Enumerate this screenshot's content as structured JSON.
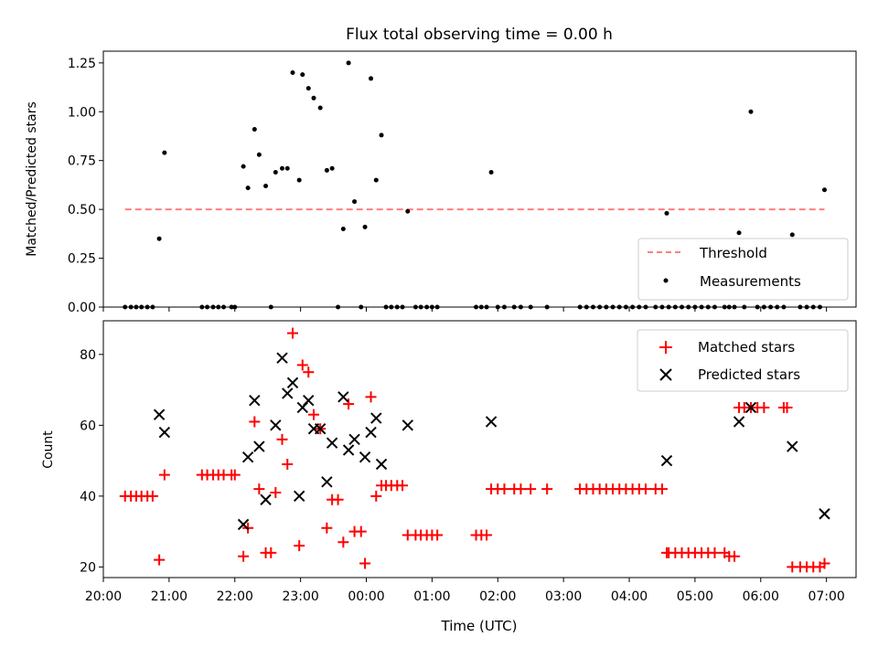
{
  "title": "Flux total observing time = 0.00 h",
  "chart_data": [
    {
      "type": "scatter",
      "panel": "top",
      "ylabel": "Matched/Predicted stars",
      "xlim": [
        20.0,
        31.45
      ],
      "ylim": [
        0.0,
        1.31
      ],
      "yticks": [
        0.0,
        0.25,
        0.5,
        0.75,
        1.0,
        1.25
      ],
      "ytick_labels": [
        "0.00",
        "0.25",
        "0.50",
        "0.75",
        "1.00",
        "1.25"
      ],
      "legend_position": "lower right",
      "threshold": {
        "name": "Threshold",
        "value": 0.5,
        "x_start": 20.33,
        "x_end": 30.97,
        "color": "#ff7f7f",
        "style": "dashed"
      },
      "measurements": {
        "name": "Measurements",
        "color": "#000000",
        "points": [
          [
            20.33,
            0
          ],
          [
            20.42,
            0
          ],
          [
            20.5,
            0
          ],
          [
            20.58,
            0
          ],
          [
            20.67,
            0
          ],
          [
            20.75,
            0
          ],
          [
            20.85,
            0.35
          ],
          [
            20.93,
            0.79
          ],
          [
            21.5,
            0
          ],
          [
            21.58,
            0
          ],
          [
            21.67,
            0
          ],
          [
            21.75,
            0
          ],
          [
            21.83,
            0
          ],
          [
            21.95,
            0
          ],
          [
            22.0,
            0
          ],
          [
            22.13,
            0.72
          ],
          [
            22.2,
            0.61
          ],
          [
            22.3,
            0.91
          ],
          [
            22.37,
            0.78
          ],
          [
            22.47,
            0.62
          ],
          [
            22.55,
            0
          ],
          [
            22.62,
            0.69
          ],
          [
            22.72,
            0.71
          ],
          [
            22.8,
            0.71
          ],
          [
            22.88,
            1.2
          ],
          [
            22.98,
            0.65
          ],
          [
            23.03,
            1.19
          ],
          [
            23.12,
            1.12
          ],
          [
            23.2,
            1.07
          ],
          [
            23.3,
            1.02
          ],
          [
            23.4,
            0.7
          ],
          [
            23.48,
            0.71
          ],
          [
            23.57,
            0
          ],
          [
            23.65,
            0.4
          ],
          [
            23.73,
            1.25
          ],
          [
            23.82,
            0.54
          ],
          [
            23.92,
            0
          ],
          [
            23.98,
            0.41
          ],
          [
            24.07,
            1.17
          ],
          [
            24.15,
            0.65
          ],
          [
            24.23,
            0.88
          ],
          [
            24.3,
            0
          ],
          [
            24.38,
            0
          ],
          [
            24.47,
            0
          ],
          [
            24.55,
            0
          ],
          [
            24.63,
            0.49
          ],
          [
            24.75,
            0
          ],
          [
            24.83,
            0
          ],
          [
            24.92,
            0
          ],
          [
            25.0,
            0
          ],
          [
            25.08,
            0
          ],
          [
            25.67,
            0
          ],
          [
            25.75,
            0
          ],
          [
            25.83,
            0
          ],
          [
            25.9,
            0.69
          ],
          [
            26.0,
            0
          ],
          [
            26.1,
            0
          ],
          [
            26.25,
            0
          ],
          [
            26.35,
            0
          ],
          [
            26.5,
            0
          ],
          [
            26.75,
            0
          ],
          [
            27.25,
            0
          ],
          [
            27.35,
            0
          ],
          [
            27.45,
            0
          ],
          [
            27.55,
            0
          ],
          [
            27.65,
            0
          ],
          [
            27.75,
            0
          ],
          [
            27.85,
            0
          ],
          [
            27.95,
            0
          ],
          [
            28.05,
            0
          ],
          [
            28.15,
            0
          ],
          [
            28.25,
            0
          ],
          [
            28.4,
            0
          ],
          [
            28.5,
            0
          ],
          [
            28.57,
            0.48
          ],
          [
            28.6,
            0
          ],
          [
            28.7,
            0
          ],
          [
            28.8,
            0
          ],
          [
            28.9,
            0
          ],
          [
            29.0,
            0
          ],
          [
            29.1,
            0
          ],
          [
            29.2,
            0
          ],
          [
            29.3,
            0
          ],
          [
            29.45,
            0
          ],
          [
            29.52,
            0
          ],
          [
            29.6,
            0
          ],
          [
            29.67,
            0.38
          ],
          [
            29.75,
            0
          ],
          [
            29.85,
            1.0
          ],
          [
            29.95,
            0
          ],
          [
            30.05,
            0
          ],
          [
            30.15,
            0
          ],
          [
            30.25,
            0
          ],
          [
            30.35,
            0
          ],
          [
            30.48,
            0.37
          ],
          [
            30.6,
            0
          ],
          [
            30.7,
            0
          ],
          [
            30.8,
            0
          ],
          [
            30.9,
            0
          ],
          [
            30.97,
            0.6
          ]
        ]
      }
    },
    {
      "type": "scatter",
      "panel": "bottom",
      "xlabel": "Time (UTC)",
      "ylabel": "Count",
      "xlim": [
        20.0,
        31.45
      ],
      "ylim": [
        17.0,
        89.5
      ],
      "yticks": [
        20,
        40,
        60,
        80
      ],
      "ytick_labels": [
        "20",
        "40",
        "60",
        "80"
      ],
      "xticks": [
        20.0,
        21.0,
        22.0,
        23.0,
        24.0,
        25.0,
        26.0,
        27.0,
        28.0,
        29.0,
        30.0,
        31.0
      ],
      "xtick_labels": [
        "20:00",
        "21:00",
        "22:00",
        "23:00",
        "00:00",
        "01:00",
        "02:00",
        "03:00",
        "04:00",
        "05:00",
        "06:00",
        "07:00"
      ],
      "legend_position": "upper right",
      "series": [
        {
          "name": "Matched stars",
          "marker": "plus",
          "color": "#ff0000",
          "points": [
            [
              20.33,
              40
            ],
            [
              20.42,
              40
            ],
            [
              20.5,
              40
            ],
            [
              20.58,
              40
            ],
            [
              20.67,
              40
            ],
            [
              20.75,
              40
            ],
            [
              20.85,
              22
            ],
            [
              20.93,
              46
            ],
            [
              21.5,
              46
            ],
            [
              21.58,
              46
            ],
            [
              21.67,
              46
            ],
            [
              21.75,
              46
            ],
            [
              21.83,
              46
            ],
            [
              21.95,
              46
            ],
            [
              22.0,
              46
            ],
            [
              22.13,
              23
            ],
            [
              22.2,
              31
            ],
            [
              22.3,
              61
            ],
            [
              22.37,
              42
            ],
            [
              22.47,
              24
            ],
            [
              22.55,
              24
            ],
            [
              22.62,
              41
            ],
            [
              22.72,
              56
            ],
            [
              22.8,
              49
            ],
            [
              22.88,
              86
            ],
            [
              22.98,
              26
            ],
            [
              23.03,
              77
            ],
            [
              23.12,
              75
            ],
            [
              23.2,
              63
            ],
            [
              23.3,
              59
            ],
            [
              23.4,
              31
            ],
            [
              23.48,
              39
            ],
            [
              23.57,
              39
            ],
            [
              23.65,
              27
            ],
            [
              23.73,
              66
            ],
            [
              23.82,
              30
            ],
            [
              23.92,
              30
            ],
            [
              23.98,
              21
            ],
            [
              24.07,
              68
            ],
            [
              24.15,
              40
            ],
            [
              24.23,
              43
            ],
            [
              24.3,
              43
            ],
            [
              24.38,
              43
            ],
            [
              24.47,
              43
            ],
            [
              24.55,
              43
            ],
            [
              24.63,
              29
            ],
            [
              24.75,
              29
            ],
            [
              24.83,
              29
            ],
            [
              24.92,
              29
            ],
            [
              25.0,
              29
            ],
            [
              25.08,
              29
            ],
            [
              25.67,
              29
            ],
            [
              25.75,
              29
            ],
            [
              25.83,
              29
            ],
            [
              25.9,
              42
            ],
            [
              26.0,
              42
            ],
            [
              26.1,
              42
            ],
            [
              26.25,
              42
            ],
            [
              26.35,
              42
            ],
            [
              26.5,
              42
            ],
            [
              26.75,
              42
            ],
            [
              27.25,
              42
            ],
            [
              27.35,
              42
            ],
            [
              27.45,
              42
            ],
            [
              27.55,
              42
            ],
            [
              27.65,
              42
            ],
            [
              27.75,
              42
            ],
            [
              27.85,
              42
            ],
            [
              27.95,
              42
            ],
            [
              28.05,
              42
            ],
            [
              28.15,
              42
            ],
            [
              28.25,
              42
            ],
            [
              28.4,
              42
            ],
            [
              28.5,
              42
            ],
            [
              28.57,
              24
            ],
            [
              28.6,
              24
            ],
            [
              28.7,
              24
            ],
            [
              28.8,
              24
            ],
            [
              28.9,
              24
            ],
            [
              29.0,
              24
            ],
            [
              29.1,
              24
            ],
            [
              29.2,
              24
            ],
            [
              29.3,
              24
            ],
            [
              29.45,
              24
            ],
            [
              29.52,
              23
            ],
            [
              29.6,
              23
            ],
            [
              29.67,
              65
            ],
            [
              29.75,
              65
            ],
            [
              29.85,
              65
            ],
            [
              29.95,
              65
            ],
            [
              30.05,
              65
            ],
            [
              30.35,
              65
            ],
            [
              30.4,
              65
            ],
            [
              30.48,
              20
            ],
            [
              30.6,
              20
            ],
            [
              30.7,
              20
            ],
            [
              30.8,
              20
            ],
            [
              30.9,
              20
            ],
            [
              30.97,
              21
            ]
          ]
        },
        {
          "name": "Predicted stars",
          "marker": "x",
          "color": "#000000",
          "points": [
            [
              20.85,
              63
            ],
            [
              20.93,
              58
            ],
            [
              22.13,
              32
            ],
            [
              22.2,
              51
            ],
            [
              22.3,
              67
            ],
            [
              22.37,
              54
            ],
            [
              22.47,
              39
            ],
            [
              22.62,
              60
            ],
            [
              22.72,
              79
            ],
            [
              22.8,
              69
            ],
            [
              22.88,
              72
            ],
            [
              22.98,
              40
            ],
            [
              23.03,
              65
            ],
            [
              23.12,
              67
            ],
            [
              23.2,
              59
            ],
            [
              23.3,
              59
            ],
            [
              23.4,
              44
            ],
            [
              23.48,
              55
            ],
            [
              23.65,
              68
            ],
            [
              23.73,
              53
            ],
            [
              23.82,
              56
            ],
            [
              23.98,
              51
            ],
            [
              24.07,
              58
            ],
            [
              24.15,
              62
            ],
            [
              24.23,
              49
            ],
            [
              24.63,
              60
            ],
            [
              25.9,
              61
            ],
            [
              28.57,
              50
            ],
            [
              29.67,
              61
            ],
            [
              29.85,
              65
            ],
            [
              30.48,
              54
            ],
            [
              30.97,
              35
            ]
          ]
        }
      ]
    }
  ]
}
